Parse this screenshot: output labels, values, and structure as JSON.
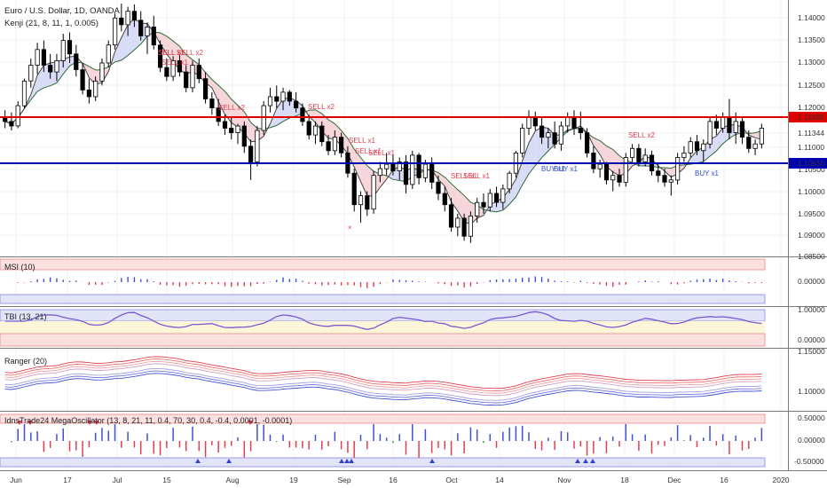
{
  "header": {
    "symbol": "Euro / U.S. Dollar, 1D, OANDA",
    "indicator": "Kenji (21, 8, 11, 1, 0.005)"
  },
  "colors": {
    "up": "#ffffff",
    "down": "#000000",
    "res_line": "#e00000",
    "sup_line": "#0000b0",
    "sell": "#e04050",
    "buy": "#3050d0",
    "grid": "#ececec"
  },
  "panels": {
    "msi": {
      "label": "MSI (10)",
      "ticks": [
        "0.00000"
      ]
    },
    "tbi": {
      "label": "TBI (13, 21)",
      "ticks": [
        "1.00000",
        "0.00000"
      ]
    },
    "ranger": {
      "label": "Ranger (20)",
      "ticks": [
        "1.15000",
        "1.10000"
      ]
    },
    "mega": {
      "label": "IdnsTrade24 MegaOscillator (13, 8, 21, 11, 0.4, 70, 30, 0.4, -0.4, 0.0001, -0.0001)",
      "ticks": [
        "0.50000",
        "0.00000",
        "-0.50000"
      ]
    }
  },
  "x_labels": [
    "Jun",
    "17",
    "Jul",
    "15",
    "Aug",
    "19",
    "Sep",
    "16",
    "Oct",
    "14",
    "Nov",
    "18",
    "Dec",
    "16",
    "2020"
  ],
  "y_labels": [
    "1.14000",
    "1.13500",
    "1.13000",
    "1.12500",
    "1.12000",
    "1.11344",
    "1.11000",
    "1.10500",
    "1.10000",
    "1.09500",
    "1.09000",
    "1.08500"
  ],
  "levels": {
    "resistance": "1.11695",
    "support": "1.10650"
  },
  "signals": [
    {
      "text": "SELL x1"
    },
    {
      "text": "SELL x1"
    },
    {
      "text": "SELL x2"
    },
    {
      "text": "SELL x1"
    },
    {
      "text": "SELL x2"
    },
    {
      "text": "SELL x2"
    },
    {
      "text": "SELL x1"
    },
    {
      "text": "SELL x1"
    },
    {
      "text": "SELL x1"
    },
    {
      "text": "SELL x1"
    },
    {
      "text": "SELL x1"
    },
    {
      "text": "SELL x2"
    },
    {
      "text": "BUY x1"
    },
    {
      "text": "BUY x1"
    },
    {
      "text": "BUY x1"
    }
  ],
  "chart_data": {
    "type": "candlestick",
    "instrument": "EUR/USD",
    "timeframe": "1D",
    "ylim": [
      1.085,
      1.142
    ],
    "candles": [
      {
        "o": 1.116,
        "h": 1.1175,
        "l": 1.1135,
        "c": 1.115
      },
      {
        "o": 1.115,
        "h": 1.117,
        "l": 1.113,
        "c": 1.114
      },
      {
        "o": 1.114,
        "h": 1.1195,
        "l": 1.1135,
        "c": 1.1185
      },
      {
        "o": 1.1185,
        "h": 1.1245,
        "l": 1.118,
        "c": 1.124
      },
      {
        "o": 1.124,
        "h": 1.129,
        "l": 1.1225,
        "c": 1.1275
      },
      {
        "o": 1.1275,
        "h": 1.1325,
        "l": 1.1255,
        "c": 1.131
      },
      {
        "o": 1.131,
        "h": 1.133,
        "l": 1.126,
        "c": 1.1275
      },
      {
        "o": 1.1275,
        "h": 1.13,
        "l": 1.1245,
        "c": 1.126
      },
      {
        "o": 1.126,
        "h": 1.13,
        "l": 1.124,
        "c": 1.1285
      },
      {
        "o": 1.1285,
        "h": 1.1345,
        "l": 1.127,
        "c": 1.133
      },
      {
        "o": 1.133,
        "h": 1.1348,
        "l": 1.128,
        "c": 1.13
      },
      {
        "o": 1.13,
        "h": 1.132,
        "l": 1.125,
        "c": 1.1265
      },
      {
        "o": 1.1265,
        "h": 1.128,
        "l": 1.121,
        "c": 1.122
      },
      {
        "o": 1.122,
        "h": 1.1245,
        "l": 1.119,
        "c": 1.1205
      },
      {
        "o": 1.1205,
        "h": 1.125,
        "l": 1.1195,
        "c": 1.124
      },
      {
        "o": 1.124,
        "h": 1.129,
        "l": 1.123,
        "c": 1.128
      },
      {
        "o": 1.128,
        "h": 1.133,
        "l": 1.127,
        "c": 1.132
      },
      {
        "o": 1.132,
        "h": 1.139,
        "l": 1.131,
        "c": 1.138
      },
      {
        "o": 1.138,
        "h": 1.1412,
        "l": 1.135,
        "c": 1.1365
      },
      {
        "o": 1.1365,
        "h": 1.1405,
        "l": 1.134,
        "c": 1.1395
      },
      {
        "o": 1.1395,
        "h": 1.141,
        "l": 1.136,
        "c": 1.1375
      },
      {
        "o": 1.1375,
        "h": 1.1395,
        "l": 1.133,
        "c": 1.134
      },
      {
        "o": 1.134,
        "h": 1.137,
        "l": 1.13,
        "c": 1.136
      },
      {
        "o": 1.136,
        "h": 1.1385,
        "l": 1.131,
        "c": 1.132
      },
      {
        "o": 1.132,
        "h": 1.133,
        "l": 1.126,
        "c": 1.127
      },
      {
        "o": 1.127,
        "h": 1.129,
        "l": 1.124,
        "c": 1.125
      },
      {
        "o": 1.125,
        "h": 1.1295,
        "l": 1.124,
        "c": 1.1285
      },
      {
        "o": 1.1285,
        "h": 1.13,
        "l": 1.125,
        "c": 1.126
      },
      {
        "o": 1.126,
        "h": 1.1275,
        "l": 1.1215,
        "c": 1.1225
      },
      {
        "o": 1.1225,
        "h": 1.1285,
        "l": 1.1215,
        "c": 1.1275
      },
      {
        "o": 1.1275,
        "h": 1.129,
        "l": 1.1235,
        "c": 1.1245
      },
      {
        "o": 1.1245,
        "h": 1.126,
        "l": 1.119,
        "c": 1.12
      },
      {
        "o": 1.12,
        "h": 1.1215,
        "l": 1.1165,
        "c": 1.118
      },
      {
        "o": 1.118,
        "h": 1.12,
        "l": 1.114,
        "c": 1.115
      },
      {
        "o": 1.115,
        "h": 1.1165,
        "l": 1.112,
        "c": 1.1135
      },
      {
        "o": 1.1135,
        "h": 1.116,
        "l": 1.111,
        "c": 1.1125
      },
      {
        "o": 1.1125,
        "h": 1.1145,
        "l": 1.11,
        "c": 1.114
      },
      {
        "o": 1.114,
        "h": 1.115,
        "l": 1.108,
        "c": 1.1095
      },
      {
        "o": 1.1095,
        "h": 1.111,
        "l": 1.102,
        "c": 1.106
      },
      {
        "o": 1.106,
        "h": 1.114,
        "l": 1.105,
        "c": 1.113
      },
      {
        "o": 1.113,
        "h": 1.1195,
        "l": 1.112,
        "c": 1.1185
      },
      {
        "o": 1.1185,
        "h": 1.1225,
        "l": 1.117,
        "c": 1.1205
      },
      {
        "o": 1.1205,
        "h": 1.123,
        "l": 1.118,
        "c": 1.1195
      },
      {
        "o": 1.1195,
        "h": 1.1225,
        "l": 1.1175,
        "c": 1.1215
      },
      {
        "o": 1.1215,
        "h": 1.122,
        "l": 1.1185,
        "c": 1.1195
      },
      {
        "o": 1.1195,
        "h": 1.1215,
        "l": 1.117,
        "c": 1.118
      },
      {
        "o": 1.118,
        "h": 1.119,
        "l": 1.114,
        "c": 1.115
      },
      {
        "o": 1.115,
        "h": 1.1165,
        "l": 1.111,
        "c": 1.112
      },
      {
        "o": 1.112,
        "h": 1.115,
        "l": 1.11,
        "c": 1.114
      },
      {
        "o": 1.114,
        "h": 1.115,
        "l": 1.1095,
        "c": 1.1105
      },
      {
        "o": 1.1105,
        "h": 1.112,
        "l": 1.1075,
        "c": 1.1085
      },
      {
        "o": 1.1085,
        "h": 1.113,
        "l": 1.1075,
        "c": 1.1115
      },
      {
        "o": 1.1115,
        "h": 1.1125,
        "l": 1.107,
        "c": 1.108
      },
      {
        "o": 1.108,
        "h": 1.1095,
        "l": 1.1025,
        "c": 1.1035
      },
      {
        "o": 1.1035,
        "h": 1.1045,
        "l": 1.095,
        "c": 1.0965
      },
      {
        "o": 1.0965,
        "h": 1.0995,
        "l": 1.0925,
        "c": 1.0985
      },
      {
        "o": 1.0985,
        "h": 1.0995,
        "l": 1.094,
        "c": 1.0955
      },
      {
        "o": 1.0955,
        "h": 1.104,
        "l": 1.0945,
        "c": 1.103
      },
      {
        "o": 1.103,
        "h": 1.106,
        "l": 1.1015,
        "c": 1.1045
      },
      {
        "o": 1.1045,
        "h": 1.108,
        "l": 1.103,
        "c": 1.1055
      },
      {
        "o": 1.1055,
        "h": 1.1075,
        "l": 1.103,
        "c": 1.104
      },
      {
        "o": 1.104,
        "h": 1.107,
        "l": 1.102,
        "c": 1.106
      },
      {
        "o": 1.106,
        "h": 1.1075,
        "l": 1.099,
        "c": 1.101
      },
      {
        "o": 1.101,
        "h": 1.1085,
        "l": 1.1,
        "c": 1.1075
      },
      {
        "o": 1.1075,
        "h": 1.108,
        "l": 1.101,
        "c": 1.1025
      },
      {
        "o": 1.1025,
        "h": 1.1065,
        "l": 1.1015,
        "c": 1.1055
      },
      {
        "o": 1.1055,
        "h": 1.107,
        "l": 1.1,
        "c": 1.1015
      },
      {
        "o": 1.1015,
        "h": 1.103,
        "l": 1.0975,
        "c": 1.099
      },
      {
        "o": 1.099,
        "h": 1.1005,
        "l": 1.095,
        "c": 1.0965
      },
      {
        "o": 1.0965,
        "h": 1.098,
        "l": 1.0905,
        "c": 1.0915
      },
      {
        "o": 1.0915,
        "h": 1.0945,
        "l": 1.0895,
        "c": 1.0935
      },
      {
        "o": 1.0935,
        "h": 1.0945,
        "l": 1.0885,
        "c": 1.0895
      },
      {
        "o": 1.0895,
        "h": 1.095,
        "l": 1.088,
        "c": 1.094
      },
      {
        "o": 1.094,
        "h": 1.098,
        "l": 1.0925,
        "c": 1.097
      },
      {
        "o": 1.097,
        "h": 1.099,
        "l": 1.0945,
        "c": 1.096
      },
      {
        "o": 1.096,
        "h": 1.1,
        "l": 1.095,
        "c": 1.099
      },
      {
        "o": 1.099,
        "h": 1.1005,
        "l": 1.096,
        "c": 1.097
      },
      {
        "o": 1.097,
        "h": 1.101,
        "l": 1.0955,
        "c": 1.1
      },
      {
        "o": 1.1,
        "h": 1.104,
        "l": 1.099,
        "c": 1.1035
      },
      {
        "o": 1.1035,
        "h": 1.1085,
        "l": 1.1025,
        "c": 1.108
      },
      {
        "o": 1.108,
        "h": 1.1145,
        "l": 1.107,
        "c": 1.1135
      },
      {
        "o": 1.1135,
        "h": 1.1175,
        "l": 1.112,
        "c": 1.116
      },
      {
        "o": 1.116,
        "h": 1.1172,
        "l": 1.113,
        "c": 1.114
      },
      {
        "o": 1.114,
        "h": 1.116,
        "l": 1.11,
        "c": 1.1115
      },
      {
        "o": 1.1115,
        "h": 1.1135,
        "l": 1.109,
        "c": 1.1125
      },
      {
        "o": 1.1125,
        "h": 1.115,
        "l": 1.109,
        "c": 1.11
      },
      {
        "o": 1.11,
        "h": 1.115,
        "l": 1.1085,
        "c": 1.114
      },
      {
        "o": 1.114,
        "h": 1.117,
        "l": 1.1125,
        "c": 1.116
      },
      {
        "o": 1.116,
        "h": 1.1175,
        "l": 1.112,
        "c": 1.1135
      },
      {
        "o": 1.1135,
        "h": 1.1172,
        "l": 1.111,
        "c": 1.1125
      },
      {
        "o": 1.1125,
        "h": 1.1135,
        "l": 1.107,
        "c": 1.108
      },
      {
        "o": 1.108,
        "h": 1.1095,
        "l": 1.1035,
        "c": 1.1045
      },
      {
        "o": 1.1045,
        "h": 1.1065,
        "l": 1.1025,
        "c": 1.1055
      },
      {
        "o": 1.1055,
        "h": 1.106,
        "l": 1.101,
        "c": 1.102
      },
      {
        "o": 1.102,
        "h": 1.104,
        "l": 1.0995,
        "c": 1.103
      },
      {
        "o": 1.103,
        "h": 1.1045,
        "l": 1.1005,
        "c": 1.1015
      },
      {
        "o": 1.1015,
        "h": 1.108,
        "l": 1.1005,
        "c": 1.107
      },
      {
        "o": 1.107,
        "h": 1.11,
        "l": 1.106,
        "c": 1.109
      },
      {
        "o": 1.109,
        "h": 1.11,
        "l": 1.105,
        "c": 1.106
      },
      {
        "o": 1.106,
        "h": 1.109,
        "l": 1.105,
        "c": 1.1075
      },
      {
        "o": 1.1075,
        "h": 1.1085,
        "l": 1.103,
        "c": 1.104
      },
      {
        "o": 1.104,
        "h": 1.1055,
        "l": 1.1015,
        "c": 1.103
      },
      {
        "o": 1.103,
        "h": 1.1045,
        "l": 1.1005,
        "c": 1.1015
      },
      {
        "o": 1.1015,
        "h": 1.103,
        "l": 1.0985,
        "c": 1.102
      },
      {
        "o": 1.102,
        "h": 1.108,
        "l": 1.101,
        "c": 1.107
      },
      {
        "o": 1.107,
        "h": 1.1095,
        "l": 1.106,
        "c": 1.108
      },
      {
        "o": 1.108,
        "h": 1.1115,
        "l": 1.107,
        "c": 1.1105
      },
      {
        "o": 1.1105,
        "h": 1.112,
        "l": 1.1075,
        "c": 1.1085
      },
      {
        "o": 1.1085,
        "h": 1.111,
        "l": 1.106,
        "c": 1.11
      },
      {
        "o": 1.11,
        "h": 1.116,
        "l": 1.109,
        "c": 1.115
      },
      {
        "o": 1.115,
        "h": 1.1165,
        "l": 1.112,
        "c": 1.1135
      },
      {
        "o": 1.1135,
        "h": 1.117,
        "l": 1.1125,
        "c": 1.116
      },
      {
        "o": 1.116,
        "h": 1.12,
        "l": 1.111,
        "c": 1.1125
      },
      {
        "o": 1.1125,
        "h": 1.117,
        "l": 1.11,
        "c": 1.115
      },
      {
        "o": 1.115,
        "h": 1.116,
        "l": 1.11,
        "c": 1.1115
      },
      {
        "o": 1.1115,
        "h": 1.113,
        "l": 1.108,
        "c": 1.109
      },
      {
        "o": 1.109,
        "h": 1.111,
        "l": 1.1075,
        "c": 1.11
      },
      {
        "o": 1.11,
        "h": 1.1145,
        "l": 1.109,
        "c": 1.1135
      }
    ]
  }
}
